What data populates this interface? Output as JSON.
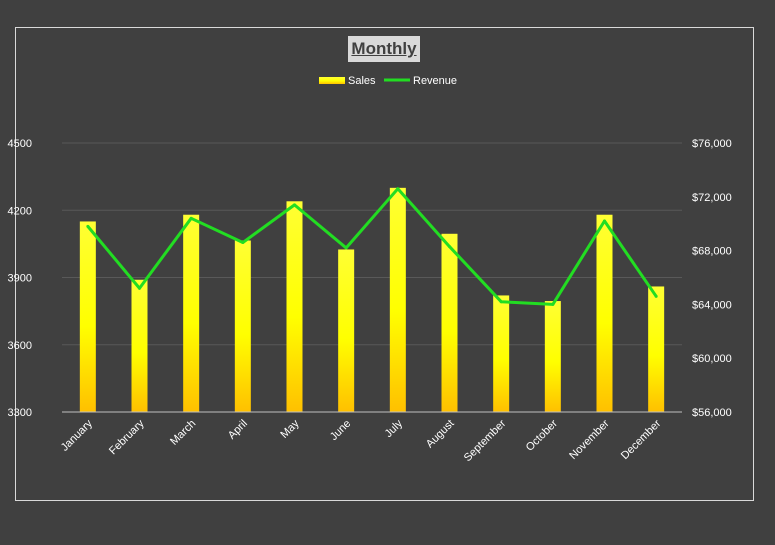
{
  "chart_data": {
    "type": "bar",
    "title": "Monthly",
    "categories": [
      "January",
      "February",
      "March",
      "April",
      "May",
      "June",
      "July",
      "August",
      "September",
      "October",
      "November",
      "December"
    ],
    "series": [
      {
        "name": "Sales",
        "type": "bar",
        "axis": "left",
        "values": [
          4150,
          3890,
          4180,
          4065,
          4240,
          4025,
          4300,
          4095,
          3820,
          3795,
          4180,
          3860
        ]
      },
      {
        "name": "Revenue",
        "type": "line",
        "axis": "right",
        "values": [
          69800,
          65200,
          70400,
          68600,
          71400,
          68200,
          72600,
          68300,
          64200,
          64000,
          70200,
          64600
        ]
      }
    ],
    "y_left": {
      "range": [
        3300,
        4500
      ],
      "ticks": [
        "3300",
        "3600",
        "3900",
        "4200",
        "4500"
      ]
    },
    "y_right": {
      "range": [
        56000,
        76000
      ],
      "ticks": [
        "$56,000",
        "$60,000",
        "$64,000",
        "$68,000",
        "$72,000",
        "$76,000"
      ]
    },
    "legend_position": "top",
    "grid": true,
    "colors": {
      "background": "#404040",
      "frame": "#d9d9d9",
      "gridline": "#595959",
      "bar_top": "#ffff33",
      "bar_bottom": "#ffc000",
      "line": "#22dd22",
      "text": "#ffffff",
      "title_bg": "#d9d9d9",
      "title_text": "#404040"
    }
  }
}
